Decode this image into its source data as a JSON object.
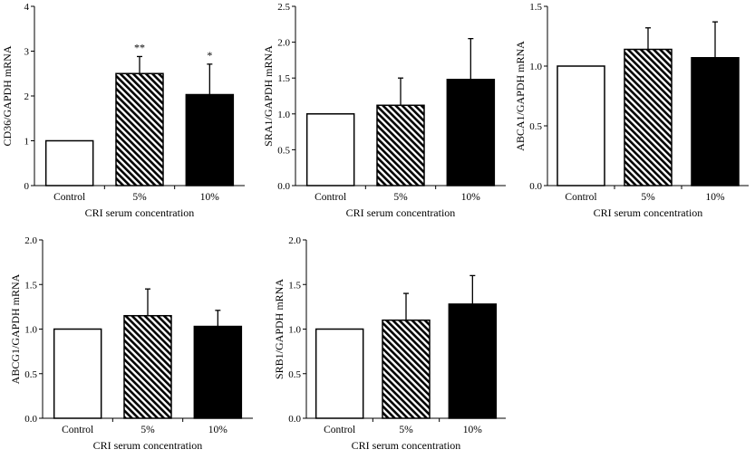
{
  "figure": {
    "colors": {
      "control": "#ffffff",
      "five_percent": "hatched-black",
      "ten_percent": "#000000",
      "axis": "#000000"
    }
  },
  "chart_data": [
    {
      "type": "bar",
      "categories": [
        "Control",
        "5%",
        "10%"
      ],
      "values": [
        1.0,
        2.5,
        2.03
      ],
      "errors": [
        0,
        0.38,
        0.68
      ],
      "significance": [
        "",
        "**",
        "*"
      ],
      "ylabel": "CD36/GAPDH mRNA",
      "xlabel": "CRI serum concentration",
      "ylim": [
        0,
        4
      ],
      "yticks": [
        "0",
        "1",
        "2",
        "3",
        "4"
      ],
      "yticks_values": [
        0,
        1,
        2,
        3,
        4
      ]
    },
    {
      "type": "bar",
      "categories": [
        "Control",
        "5%",
        "10%"
      ],
      "values": [
        1.0,
        1.12,
        1.48
      ],
      "errors": [
        0,
        0.38,
        0.57
      ],
      "significance": [
        "",
        "",
        ""
      ],
      "ylabel": "SRA1/GAPDH mRNA",
      "xlabel": "CRI serum concentration",
      "ylim": [
        0,
        2.5
      ],
      "yticks": [
        "0.0",
        "0.5",
        "1.0",
        "1.5",
        "2.0",
        "2.5"
      ],
      "yticks_values": [
        0,
        0.5,
        1.0,
        1.5,
        2.0,
        2.5
      ]
    },
    {
      "type": "bar",
      "categories": [
        "Control",
        "5%",
        "10%"
      ],
      "values": [
        1.0,
        1.14,
        1.07
      ],
      "errors": [
        0,
        0.18,
        0.3
      ],
      "significance": [
        "",
        "",
        ""
      ],
      "ylabel": "ABCA1/GAPDH mRNA",
      "xlabel": "CRI serum concentration",
      "ylim": [
        0,
        1.5
      ],
      "yticks": [
        "0.0",
        "0.5",
        "1.0",
        "1.5"
      ],
      "yticks_values": [
        0,
        0.5,
        1.0,
        1.5
      ]
    },
    {
      "type": "bar",
      "categories": [
        "Control",
        "5%",
        "10%"
      ],
      "values": [
        1.0,
        1.15,
        1.03
      ],
      "errors": [
        0,
        0.3,
        0.18
      ],
      "significance": [
        "",
        "",
        ""
      ],
      "ylabel": "ABCG1/GAPDH mRNA",
      "xlabel": "CRI serum concentration",
      "ylim": [
        0,
        2.0
      ],
      "yticks": [
        "0.0",
        "0.5",
        "1.0",
        "1.5",
        "2.0"
      ],
      "yticks_values": [
        0,
        0.5,
        1.0,
        1.5,
        2.0
      ]
    },
    {
      "type": "bar",
      "categories": [
        "Control",
        "5%",
        "10%"
      ],
      "values": [
        1.0,
        1.1,
        1.28
      ],
      "errors": [
        0,
        0.3,
        0.32
      ],
      "significance": [
        "",
        "",
        ""
      ],
      "ylabel": "SRB1/GAPDH mRNA",
      "xlabel": "CRI serum concentration",
      "ylim": [
        0,
        2.0
      ],
      "yticks": [
        "0.0",
        "0.5",
        "1.0",
        "1.5",
        "2.0"
      ],
      "yticks_values": [
        0,
        0.5,
        1.0,
        1.5,
        2.0
      ]
    }
  ]
}
